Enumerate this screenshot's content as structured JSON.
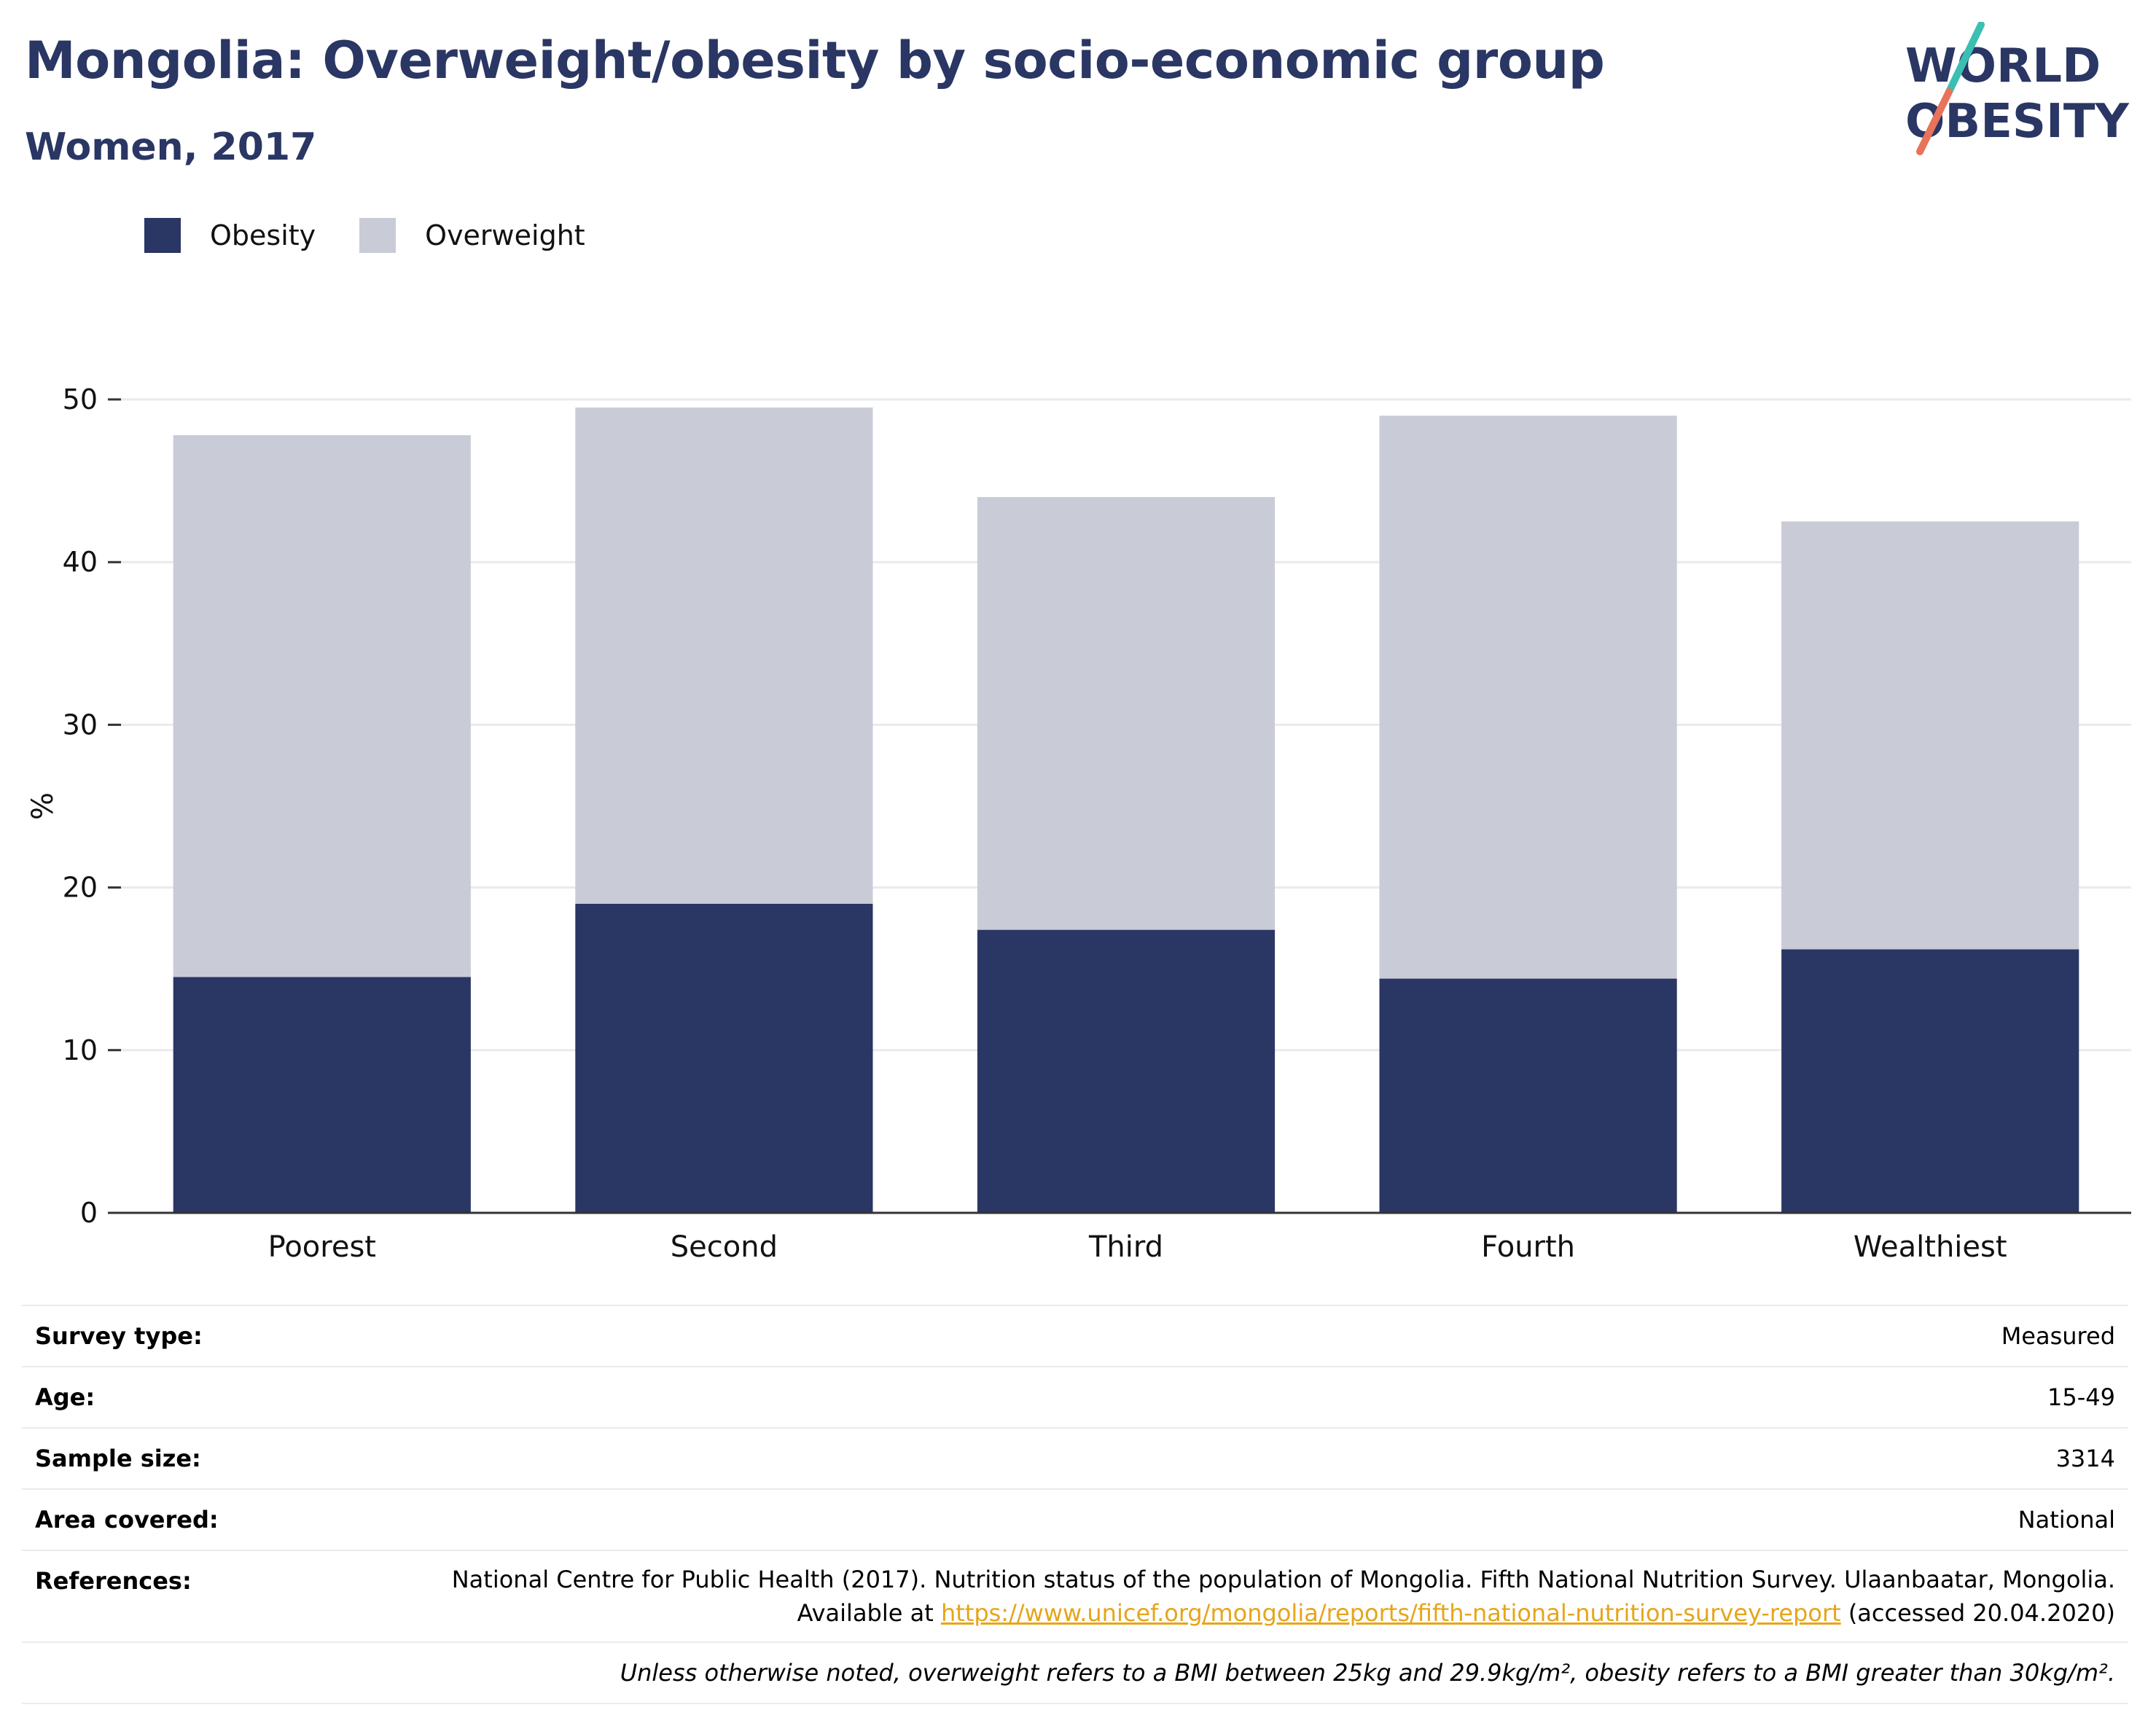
{
  "header": {
    "title": "Mongolia: Overweight/obesity by socio-economic group",
    "subtitle": "Women, 2017"
  },
  "logo": {
    "line1": "WORLD",
    "line2": "OBESITY",
    "colors": {
      "text": "#2a3663",
      "slash_top": "#3bbfb3",
      "slash_bottom": "#e8735a"
    }
  },
  "legend": [
    {
      "label": "Obesity",
      "color": "#2a3663"
    },
    {
      "label": "Overweight",
      "color": "#c9cbd7"
    }
  ],
  "chart_data": {
    "type": "bar",
    "stacked": true,
    "categories": [
      "Poorest",
      "Second",
      "Third",
      "Fourth",
      "Wealthiest"
    ],
    "series": [
      {
        "name": "Obesity",
        "color": "#2a3663",
        "values": [
          14.5,
          19.0,
          17.4,
          14.4,
          16.2
        ]
      },
      {
        "name": "Overweight",
        "color": "#c9cbd7",
        "values": [
          33.3,
          30.5,
          26.6,
          34.6,
          26.3
        ]
      }
    ],
    "totals": [
      47.8,
      49.5,
      44.0,
      49.0,
      42.5
    ],
    "ylabel": "%",
    "ylim": [
      0,
      50
    ],
    "yticks": [
      0,
      10,
      20,
      30,
      40,
      50
    ],
    "grid": true,
    "legend_position": "top-left"
  },
  "meta": {
    "survey_type": {
      "label": "Survey type:",
      "value": "Measured"
    },
    "age": {
      "label": "Age:",
      "value": "15-49"
    },
    "sample_size": {
      "label": "Sample size:",
      "value": "3314"
    },
    "area_covered": {
      "label": "Area covered:",
      "value": "National"
    },
    "references": {
      "label": "References:",
      "text_before": "National Centre for Public Health (2017). Nutrition status of the population of Mongolia. Fifth National Nutrition Survey. Ulaanbaatar, Mongolia. Available at ",
      "link": "https://www.unicef.org/mongolia/reports/fifth-national-nutrition-survey-report",
      "text_after": " (accessed 20.04.2020)"
    },
    "note": "Unless otherwise noted, overweight refers to a BMI between 25kg and 29.9kg/m², obesity refers to a BMI greater than 30kg/m²."
  }
}
